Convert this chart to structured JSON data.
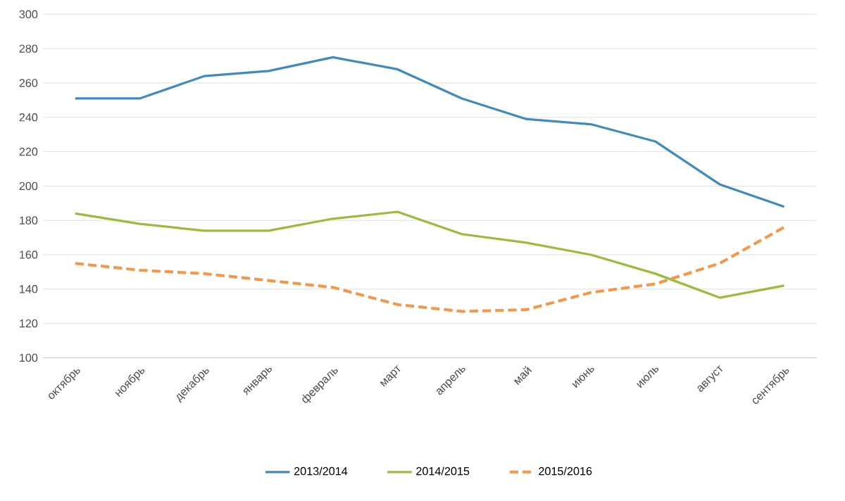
{
  "chart_data": {
    "type": "line",
    "categories": [
      "октябрь",
      "ноябрь",
      "декабрь",
      "январь",
      "февраль",
      "март",
      "апрель",
      "май",
      "июнь",
      "июль",
      "август",
      "сентябрь"
    ],
    "series": [
      {
        "name": "2013/2014",
        "color": "#3f8bbd",
        "line_style": "solid",
        "values": [
          251,
          251,
          264,
          267,
          275,
          268,
          251,
          239,
          236,
          226,
          201,
          188
        ]
      },
      {
        "name": "2014/2015",
        "color": "#9bbb3b",
        "line_style": "solid",
        "values": [
          184,
          178,
          174,
          174,
          181,
          185,
          172,
          167,
          160,
          149,
          135,
          142
        ]
      },
      {
        "name": "2015/2016",
        "color": "#f79646",
        "line_style": "dashed",
        "values": [
          155,
          151,
          149,
          145,
          141,
          131,
          127,
          128,
          138,
          143,
          155,
          176
        ]
      }
    ],
    "ylim": [
      100,
      300
    ],
    "yticks": [
      100,
      120,
      140,
      160,
      180,
      200,
      220,
      240,
      260,
      280,
      300
    ],
    "grid": "y",
    "legend": "bottom",
    "marker": "none"
  }
}
